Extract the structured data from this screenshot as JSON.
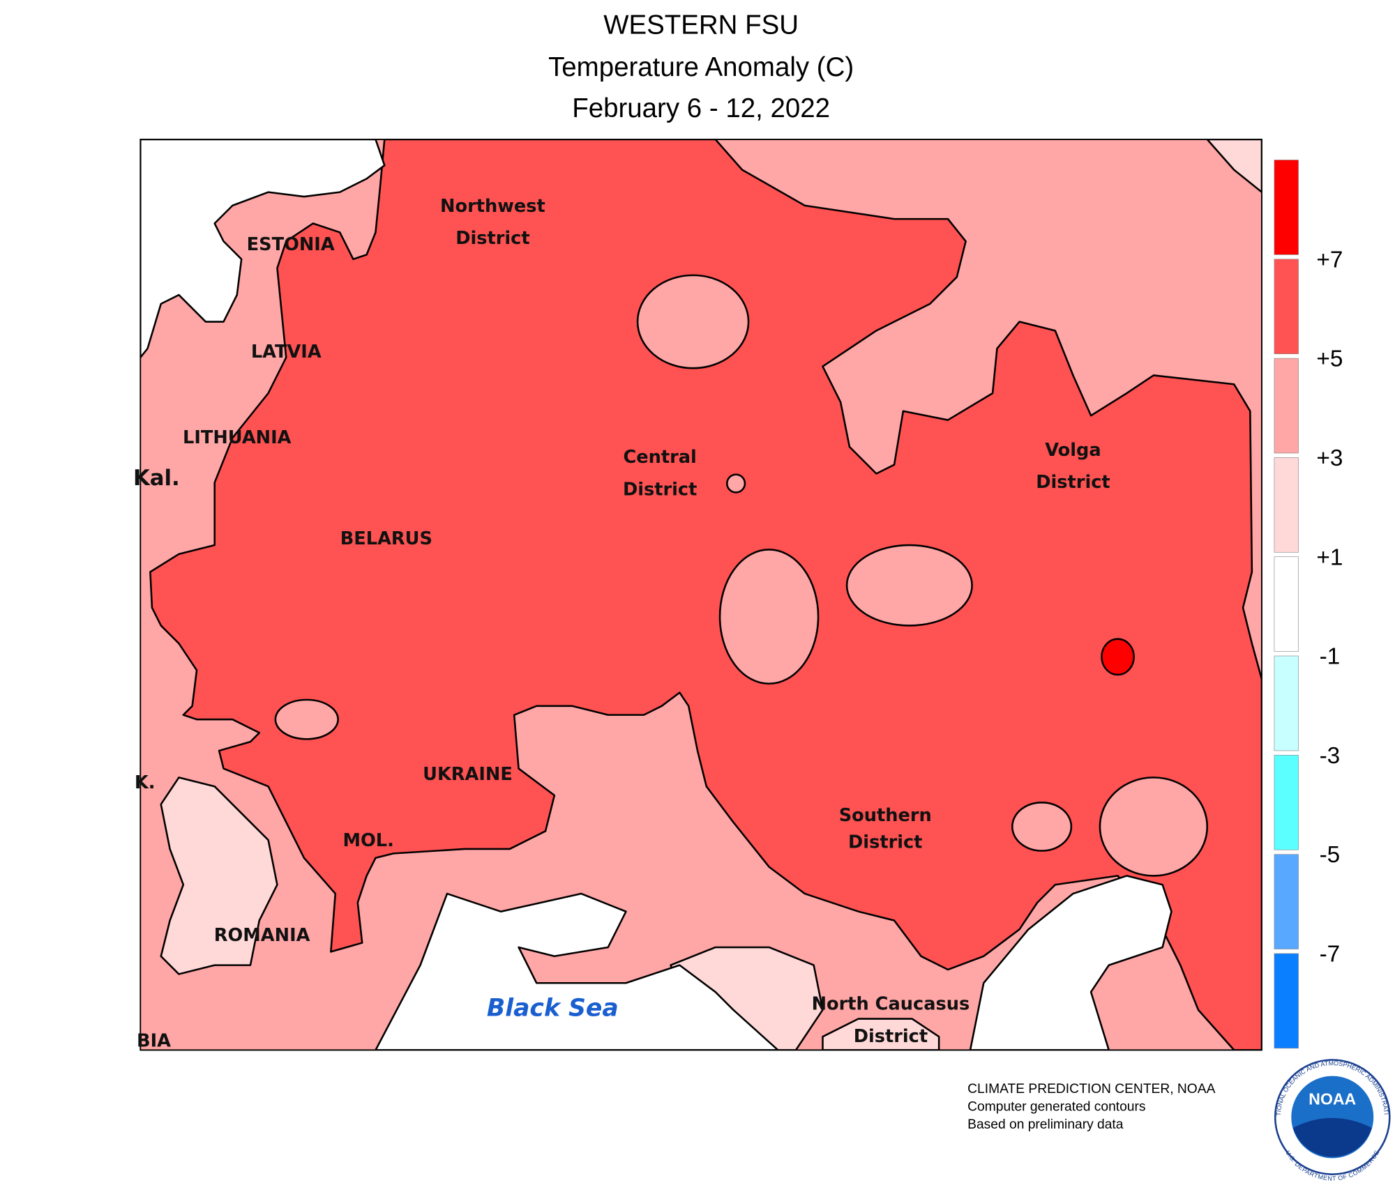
{
  "header": {
    "title": "WESTERN FSU",
    "subtitle": "Temperature Anomaly (C)",
    "period": "February 6 - 12, 2022"
  },
  "regions": {
    "estonia": "ESTONIA",
    "latvia": "LATVIA",
    "lithuania": "LITHUANIA",
    "kal": "Kal.",
    "belarus": "BELARUS",
    "ukraine": "UKRAINE",
    "moldova": "MOL.",
    "romania": "ROMANIA",
    "bia": "BIA",
    "k": "K.",
    "northwest": [
      "Northwest",
      "District"
    ],
    "central": [
      "Central",
      "District"
    ],
    "volga": [
      "Volga",
      "District"
    ],
    "southern": [
      "Southern",
      "District"
    ],
    "north_caucasus": [
      "North Caucasus",
      "District"
    ],
    "black_sea": "Black Sea"
  },
  "legend": {
    "colors": [
      "#ff0000",
      "#ff5252",
      "#ffa6a6",
      "#ffd8d8",
      "#ffffff",
      "#c8ffff",
      "#5cffff",
      "#58a8ff",
      "#0a7fff"
    ],
    "labels": [
      "+7",
      "+5",
      "+3",
      "+1",
      "-1",
      "-3",
      "-5",
      "-7"
    ]
  },
  "footer": {
    "lines": [
      "CLIMATE PREDICTION CENTER, NOAA",
      "Computer generated contours",
      "Based on preliminary data"
    ]
  },
  "logo": {
    "name": "NOAA",
    "ring_top": "NATIONAL OCEANIC AND ATMOSPHERIC ADMINISTRATION",
    "ring_bottom": "U.S. DEPARTMENT OF COMMERCE"
  }
}
